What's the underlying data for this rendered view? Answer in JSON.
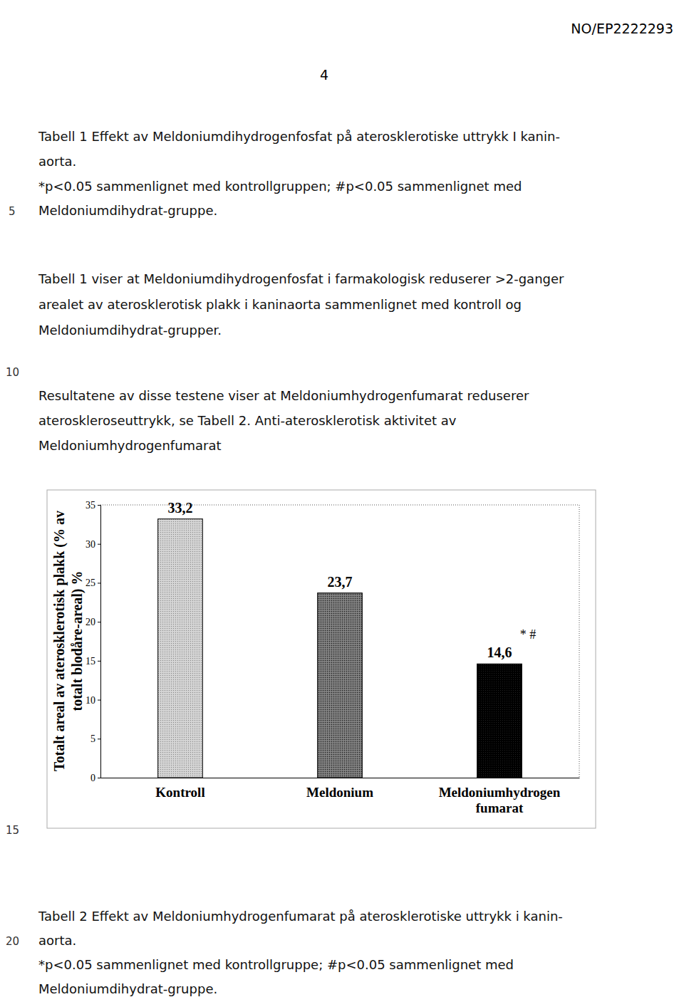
{
  "header": {
    "doc_id": "NO/EP2222293",
    "page": 4
  },
  "table1_caption": [
    "Tabell 1 Effekt av Meldoniumdihydrogenfosfat på aterosklerotiske uttrykk I kanin-",
    "aorta.",
    "*p<0.05 sammenlignet med kontrollgruppen; #p<0.05 sammenlignet med",
    "Meldoniumdihydrat-gruppe."
  ],
  "paragraphs": [
    [
      "Tabell 1 viser at Meldoniumdihydrogenfosfat i farmakologisk reduserer >2-ganger",
      "arealet av aterosklerotisk plakk i kaninaorta sammenlignet med kontroll og",
      "Meldoniumdihydrat-grupper."
    ],
    [
      "Resultatene av disse testene viser at Meldoniumhydrogenfumarat reduserer",
      "ateroskleroseuttrykk, se Tabell 2. Anti-aterosklerotisk aktivitet av",
      "Meldoniumhydrogenfumarat"
    ]
  ],
  "chart_data": {
    "type": "bar",
    "y_label": [
      "Totalt areal av aterosklerotisk plakk (% av",
      "totalt blodåre-areal) %"
    ],
    "categories": [
      "Kontroll",
      "Meldonium",
      "Meldoniumhydrogen fumarat"
    ],
    "values": [
      33.2,
      23.7,
      14.6
    ],
    "value_labels": [
      "33,2",
      "23,7",
      "14,6"
    ],
    "data_labels": true,
    "colors": [
      "#cfcfcf",
      "#6e6e6e",
      "#000000"
    ],
    "ylim": [
      0,
      35
    ],
    "yticks": [
      0,
      5,
      10,
      15,
      20,
      25,
      30,
      35
    ],
    "grid": false,
    "annotations": [
      {
        "text": "* #",
        "category": "Meldoniumhydrogen fumarat"
      }
    ]
  },
  "table2_caption": [
    "Tabell 2 Effekt av Meldoniumhydrogenfumarat på aterosklerotiske uttrykk i kanin-",
    "aorta.",
    "*p<0.05 sammenlignet med kontrollgruppe; #p<0.05 sammenlignet med",
    "Meldoniumdihydrat-gruppe."
  ],
  "line_numbers": [
    5,
    10,
    15,
    20
  ]
}
